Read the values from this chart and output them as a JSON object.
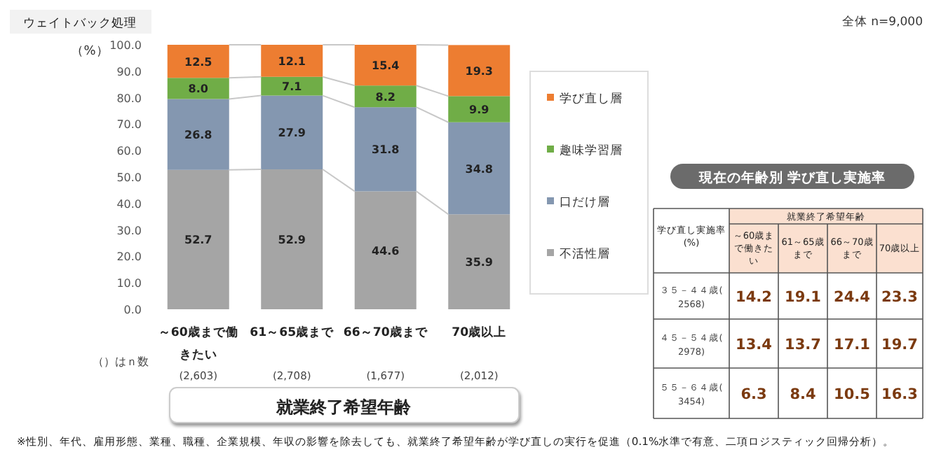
{
  "chart_data": [
    {
      "type": "bar",
      "stacked": true,
      "categories": [
        "～60歳まで働きたい",
        "61～65歳まで",
        "66～70歳まで",
        "70歳以上"
      ],
      "series": [
        {
          "name": "不活性層",
          "color": "#a5a5a5",
          "values": [
            52.7,
            52.9,
            44.6,
            35.9
          ],
          "value_labels": [
            "52.7",
            "52.9",
            "44.6",
            "35.9"
          ]
        },
        {
          "name": "口だけ層",
          "color": "#8497b0",
          "values": [
            26.8,
            27.9,
            31.8,
            34.8
          ],
          "value_labels": [
            "26.8",
            "27.9",
            "31.8",
            "34.8"
          ]
        },
        {
          "name": "趣味学習層",
          "color": "#70ad47",
          "values": [
            8.0,
            7.1,
            8.2,
            9.9
          ],
          "value_labels": [
            "8.0",
            "7.1",
            "8.2",
            "9.9"
          ]
        },
        {
          "name": "学び直し層",
          "color": "#ed7d31",
          "values": [
            12.5,
            12.1,
            15.4,
            19.3
          ],
          "value_labels": [
            "12.5",
            "12.1",
            "15.4",
            "19.3"
          ]
        }
      ],
      "ylim": [
        0,
        100
      ],
      "yticks": [
        {
          "value": 0,
          "label": "0.0"
        },
        {
          "value": 10,
          "label": "10.0"
        },
        {
          "value": 20,
          "label": "20.0"
        },
        {
          "value": 30,
          "label": "30.0"
        },
        {
          "value": 40,
          "label": "40.0"
        },
        {
          "value": 50,
          "label": "50.0"
        },
        {
          "value": 60,
          "label": "60.0"
        },
        {
          "value": 70,
          "label": "70.0"
        },
        {
          "value": 80,
          "label": "80.0"
        },
        {
          "value": 90,
          "label": "90.0"
        },
        {
          "value": 100,
          "label": "100.0"
        }
      ],
      "ylabel": "（%）",
      "xlabel": "就業終了希望年齢",
      "legend": "right",
      "grid": false,
      "annotations": [
        "ウェイトバック処理",
        "全体  n=9,000",
        "（）はｎ数",
        "(2,603)",
        "(2,708)",
        "(1,677)",
        "(2,012)",
        "※性別、年代、雇用形態、業種、職種、企業規模、年収の影響を除去しても、就業終了希望年齢が学び直しの実行を促進（0.1%水準で有意、二項ロジスティック回帰分析）。"
      ]
    },
    {
      "type": "heatmap",
      "title": "現在の年齢別  学び直し実施率",
      "xlabel": "就業終了希望年齢",
      "ylabel": "学び直し実施率\n(%)",
      "categories": [
        "～60歳まで働きたい",
        "61～65歳まで",
        "66～70歳まで",
        "70歳以上"
      ],
      "y_categories": [
        "３５－４４歳(2568)",
        "４５－５４歳(2978)",
        "５５－６４歳(3454)"
      ],
      "cells": [
        [
          14.2,
          19.1,
          24.4,
          23.3
        ],
        [
          13.4,
          13.7,
          17.1,
          19.7
        ],
        [
          6.3,
          8.4,
          10.5,
          16.3
        ]
      ],
      "data_labels": true
    }
  ]
}
